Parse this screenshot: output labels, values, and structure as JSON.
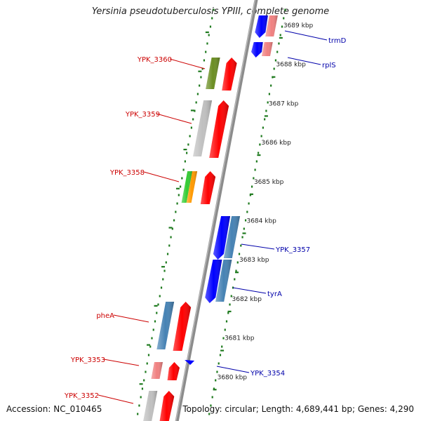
{
  "title": "Yersinia pseudotuberculosis YPIII, complete genome",
  "footer": {
    "accession": "Accession: NC_010465",
    "topology": "Topology: circular; Length: 4,689,441 bp; Genes: 4,290"
  },
  "colors": {
    "backbone": "#8c8c8c",
    "ruler_dots": "#1e7a1e",
    "forward_label": "#cc0000",
    "reverse_label": "#0000aa"
  },
  "ticks": [
    {
      "label": "3689 kbp",
      "kbp": 3689
    },
    {
      "label": "3688 kbp",
      "kbp": 3688
    },
    {
      "label": "3687 kbp",
      "kbp": 3687
    },
    {
      "label": "3686 kbp",
      "kbp": 3686
    },
    {
      "label": "3685 kbp",
      "kbp": 3685
    },
    {
      "label": "3684 kbp",
      "kbp": 3684
    },
    {
      "label": "3683 kbp",
      "kbp": 3683
    },
    {
      "label": "3682 kbp",
      "kbp": 3682
    },
    {
      "label": "3681 kbp",
      "kbp": 3681
    },
    {
      "label": "3680 kbp",
      "kbp": 3680
    }
  ],
  "genes": {
    "forward": [
      {
        "name": "YPK_3360",
        "feature_color": "#6b8e23",
        "gene_color": "#ff0000"
      },
      {
        "name": "YPK_3359",
        "feature_color": "#c0c0c0",
        "gene_color": "#ff0000"
      },
      {
        "name": "YPK_3358",
        "feature_colors": [
          "#33cc33",
          "#ff9900"
        ],
        "gene_color": "#ff0000"
      },
      {
        "name": "pheA",
        "feature_color": "#4682b4",
        "gene_color": "#ff0000"
      },
      {
        "name": "YPK_3353",
        "feature_color": "#f08080",
        "gene_color": "#ff0000"
      },
      {
        "name": "YPK_3352",
        "feature_color": "#c0c0c0",
        "gene_color": "#ff0000"
      }
    ],
    "reverse": [
      {
        "name": "trmD",
        "feature_color": "#f08080",
        "gene_color": "#0000ff"
      },
      {
        "name": "rplS",
        "feature_color": "#f08080",
        "gene_color": "#0000ff"
      },
      {
        "name": "YPK_3357",
        "feature_color": "#4682b4",
        "gene_color": "#0000ff"
      },
      {
        "name": "tyrA",
        "feature_color": "#4682b4",
        "gene_color": "#0000ff"
      },
      {
        "name": "YPK_3354",
        "feature_color": "#0000ff",
        "gene_color": "#0000ff"
      }
    ]
  }
}
